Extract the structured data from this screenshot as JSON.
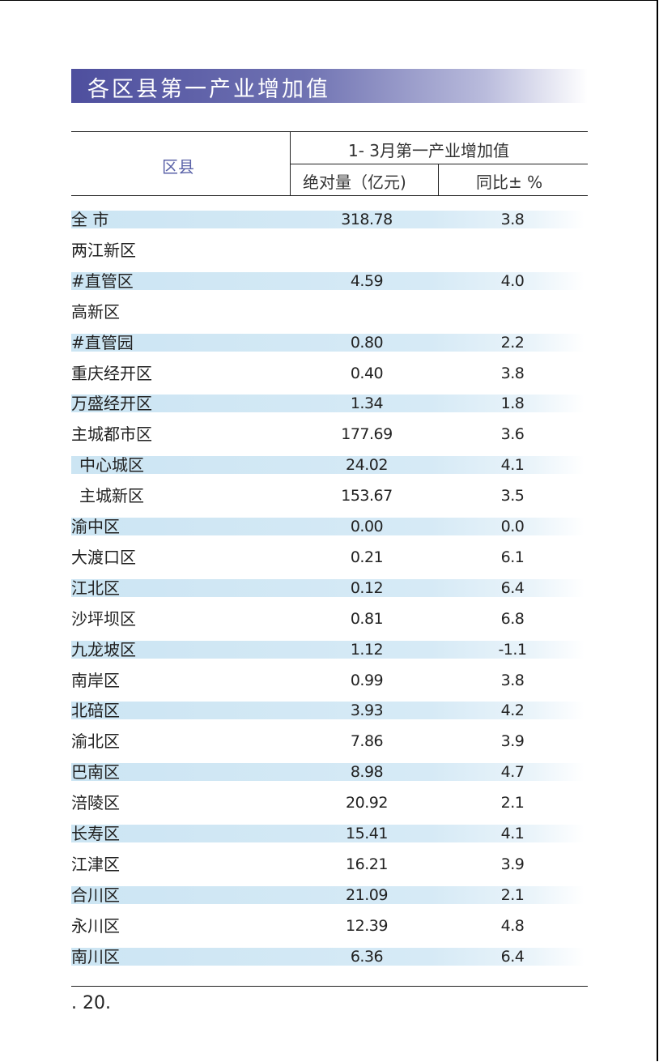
{
  "title": "各区县第一产业增加值",
  "table": {
    "header_region": "区县",
    "header_group": "1- 3月第一产业增加值",
    "header_abs": "绝对量（亿元)",
    "header_yoy": "同比± %",
    "rows": [
      {
        "name": "全  市",
        "abs": "318.78",
        "yoy": "3.8",
        "band": true
      },
      {
        "name": "两江新区",
        "abs": "",
        "yoy": "",
        "band": false
      },
      {
        "name": "#直管区",
        "abs": "4.59",
        "yoy": "4.0",
        "band": true
      },
      {
        "name": "高新区",
        "abs": "",
        "yoy": "",
        "band": false
      },
      {
        "name": "#直管园",
        "abs": "0.80",
        "yoy": "2.2",
        "band": true
      },
      {
        "name": "重庆经开区",
        "abs": "0.40",
        "yoy": "3.8",
        "band": false
      },
      {
        "name": "万盛经开区",
        "abs": "1.34",
        "yoy": "1.8",
        "band": true
      },
      {
        "name": "主城都市区",
        "abs": "177.69",
        "yoy": "3.6",
        "band": false
      },
      {
        "name": "中心城区",
        "abs": "24.02",
        "yoy": "4.1",
        "band": true,
        "indent": true
      },
      {
        "name": "主城新区",
        "abs": "153.67",
        "yoy": "3.5",
        "band": false,
        "indent": true
      },
      {
        "name": "渝中区",
        "abs": "0.00",
        "yoy": "0.0",
        "band": true
      },
      {
        "name": "大渡口区",
        "abs": "0.21",
        "yoy": "6.1",
        "band": false
      },
      {
        "name": "江北区",
        "abs": "0.12",
        "yoy": "6.4",
        "band": true
      },
      {
        "name": "沙坪坝区",
        "abs": "0.81",
        "yoy": "6.8",
        "band": false
      },
      {
        "name": "九龙坡区",
        "abs": "1.12",
        "yoy": "-1.1",
        "band": true
      },
      {
        "name": "南岸区",
        "abs": "0.99",
        "yoy": "3.8",
        "band": false
      },
      {
        "name": "北碚区",
        "abs": "3.93",
        "yoy": "4.2",
        "band": true
      },
      {
        "name": "渝北区",
        "abs": "7.86",
        "yoy": "3.9",
        "band": false
      },
      {
        "name": "巴南区",
        "abs": "8.98",
        "yoy": "4.7",
        "band": true
      },
      {
        "name": "涪陵区",
        "abs": "20.92",
        "yoy": "2.1",
        "band": false
      },
      {
        "name": "长寿区",
        "abs": "15.41",
        "yoy": "4.1",
        "band": true
      },
      {
        "name": "江津区",
        "abs": "16.21",
        "yoy": "3.9",
        "band": false
      },
      {
        "name": "合川区",
        "abs": "21.09",
        "yoy": "2.1",
        "band": true
      },
      {
        "name": "永川区",
        "abs": "12.39",
        "yoy": "4.8",
        "band": false
      },
      {
        "name": "南川区",
        "abs": "6.36",
        "yoy": "6.4",
        "band": true
      }
    ]
  },
  "page_number": ". 20."
}
